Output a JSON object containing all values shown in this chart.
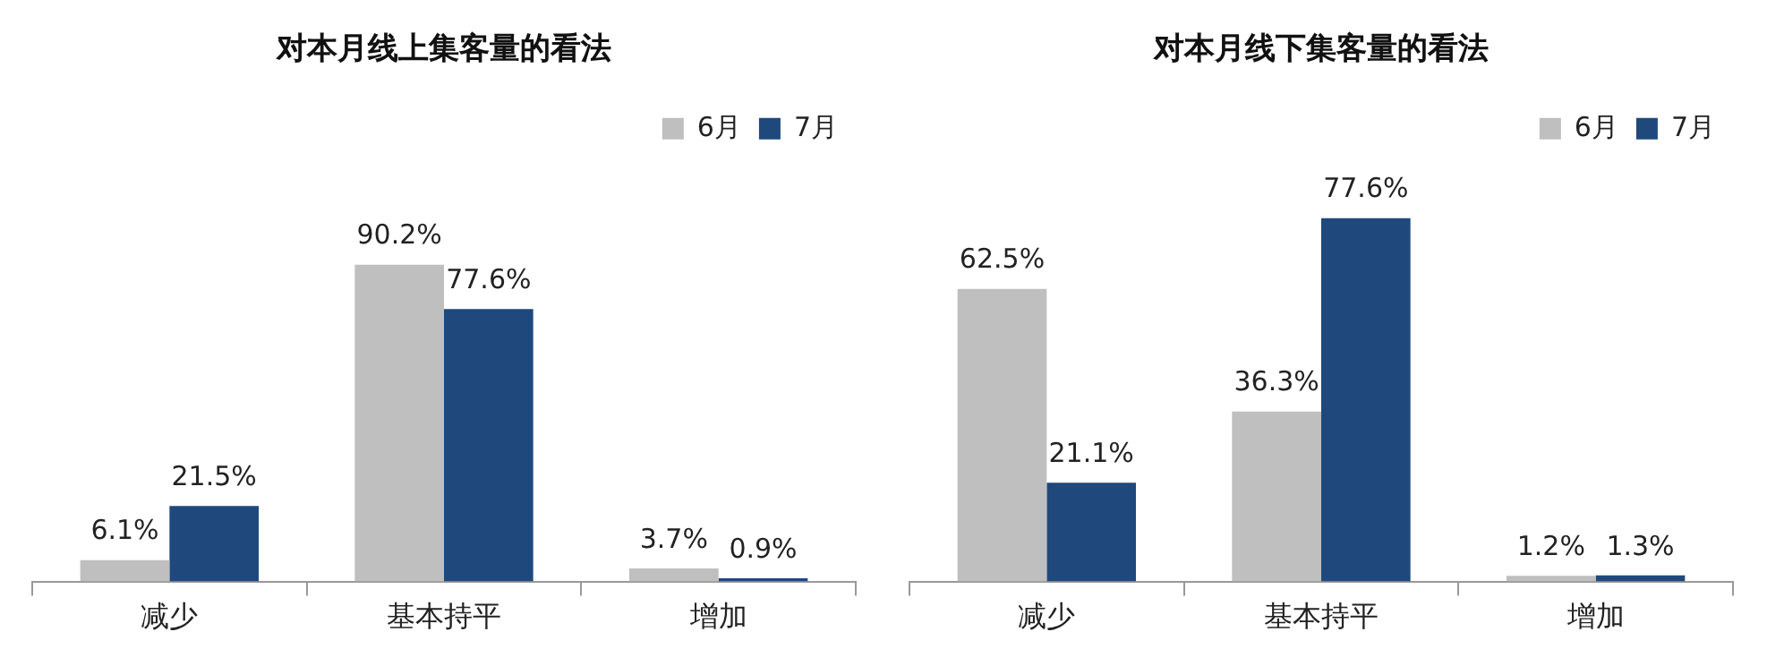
{
  "chart_data": [
    {
      "type": "bar",
      "title": "对本月线上集客量的看法",
      "categories": [
        "减少",
        "基本持平",
        "增加"
      ],
      "legend": "top right",
      "tick_labels": "x",
      "grid": false,
      "series": [
        {
          "name": "6月",
          "color": "#bfbfbf",
          "values": [
            6.1,
            90.2,
            3.7
          ],
          "value_labels": [
            "6.1%",
            "90.2%",
            "3.7%"
          ]
        },
        {
          "name": "7月",
          "color": "#1f497d",
          "values": [
            21.5,
            77.6,
            0.9
          ],
          "value_labels": [
            "21.5%",
            "77.6%",
            "0.9%"
          ]
        }
      ]
    },
    {
      "type": "bar",
      "title": "对本月线下集客量的看法",
      "categories": [
        "减少",
        "基本持平",
        "增加"
      ],
      "legend": "top right",
      "tick_labels": "x",
      "grid": false,
      "series": [
        {
          "name": "6月",
          "color": "#bfbfbf",
          "values": [
            62.5,
            36.3,
            1.2
          ],
          "value_labels": [
            "62.5%",
            "36.3%",
            "1.2%"
          ]
        },
        {
          "name": "7月",
          "color": "#1f497d",
          "values": [
            21.1,
            77.6,
            1.3
          ],
          "value_labels": [
            "21.1%",
            "77.6%",
            "1.3%"
          ]
        }
      ]
    }
  ]
}
